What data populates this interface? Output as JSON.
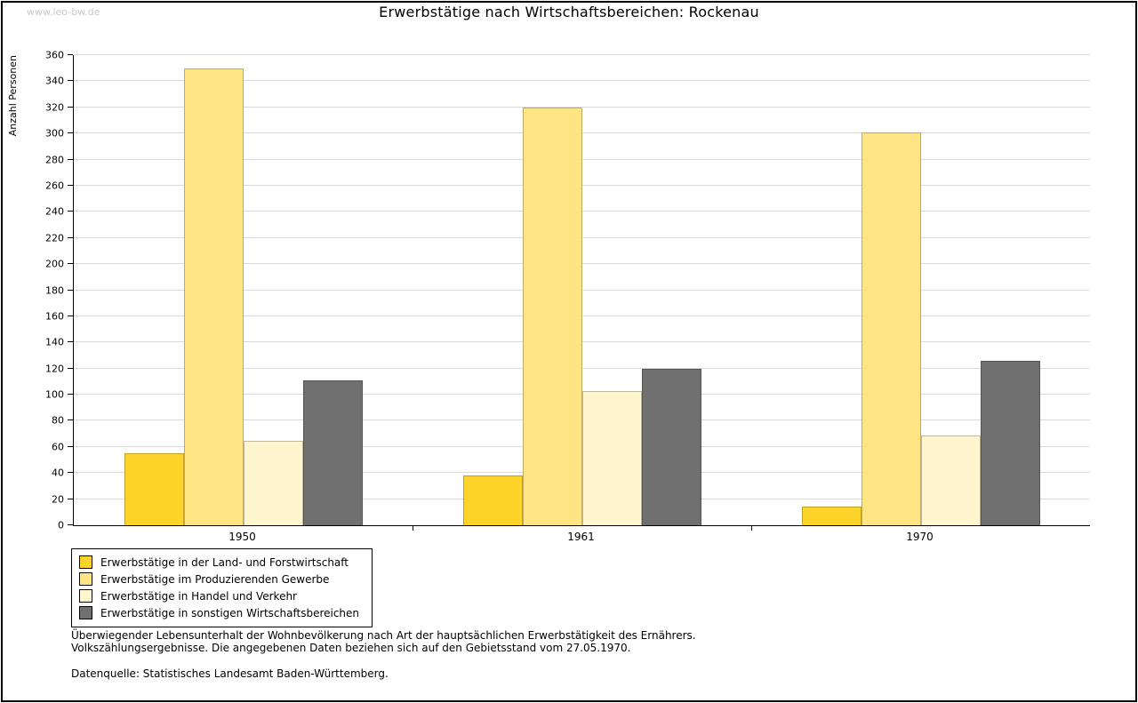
{
  "watermark": "www.leo-bw.de",
  "title": "Erwerbstätige nach Wirtschaftsbereichen: Rockenau",
  "chart_data": {
    "type": "bar",
    "title": "Erwerbstätige nach Wirtschaftsbereichen: Rockenau",
    "xlabel": "",
    "ylabel": "Anzahl Personen",
    "ylim": [
      0,
      360
    ],
    "ytick_step": 20,
    "grid": true,
    "legend_position": "bottom-left",
    "categories": [
      "1950",
      "1961",
      "1970"
    ],
    "series": [
      {
        "name": "Erwerbstätige in der Land- und Forstwirtschaft",
        "color": "#FFD42A",
        "values": [
          55,
          38,
          14
        ]
      },
      {
        "name": "Erwerbstätige im Produzierenden Gewerbe",
        "color": "#FFE483",
        "values": [
          350,
          320,
          301
        ]
      },
      {
        "name": "Erwerbstätige in Handel und Verkehr",
        "color": "#FFF5CE",
        "values": [
          65,
          103,
          69
        ]
      },
      {
        "name": "Erwerbstätige in sonstigen Wirtschaftsbereichen",
        "color": "#707070",
        "values": [
          111,
          120,
          126
        ]
      }
    ]
  },
  "footnotes": {
    "line1": "Überwiegender Lebensunterhalt der Wohnbevölkerung nach Art der hauptsächlichen Erwerbstätigkeit des Ernährers.",
    "line2": "Volkszählungsergebnisse. Die angegebenen Daten beziehen sich auf den Gebietsstand vom 27.05.1970.",
    "source": "Datenquelle: Statistisches Landesamt Baden-Württemberg."
  }
}
